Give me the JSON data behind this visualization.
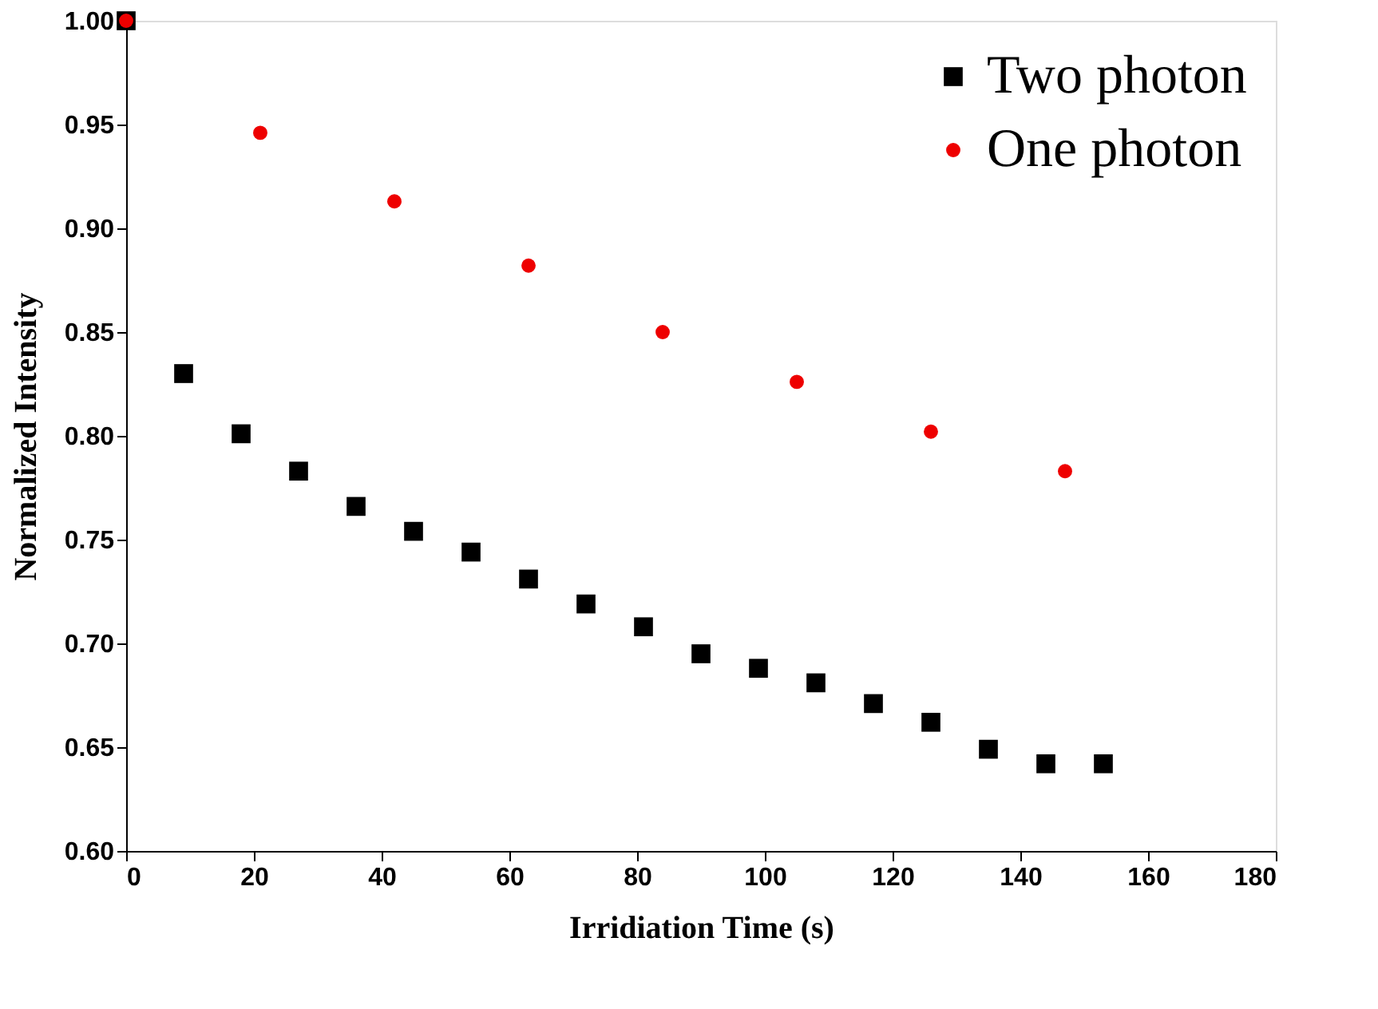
{
  "chart_data": {
    "type": "scatter",
    "xlabel": "Irridiation Time (s)",
    "ylabel": "Normalized Intensity",
    "xlim": [
      0,
      180
    ],
    "xticks": [
      0,
      20,
      40,
      60,
      80,
      100,
      120,
      140,
      160,
      180
    ],
    "ylim": [
      0.6,
      1.0
    ],
    "yticks": [
      {
        "value": 0.6,
        "label": "0.60"
      },
      {
        "value": 0.65,
        "label": "0.65"
      },
      {
        "value": 0.7,
        "label": "0.70"
      },
      {
        "value": 0.75,
        "label": "0.75"
      },
      {
        "value": 0.8,
        "label": "0.80"
      },
      {
        "value": 0.85,
        "label": "0.85"
      },
      {
        "value": 0.9,
        "label": "0.90"
      },
      {
        "value": 0.95,
        "label": "0.95"
      },
      {
        "value": 1.0,
        "label": "1.00"
      }
    ],
    "legend": "top right",
    "grid": false,
    "series": [
      {
        "name": "Two photon",
        "color": "#000000",
        "marker": "square",
        "x": [
          0,
          9,
          18,
          27,
          36,
          45,
          54,
          63,
          72,
          81,
          90,
          99,
          108,
          117,
          126,
          135,
          144,
          153
        ],
        "values": [
          1.0,
          0.83,
          0.801,
          0.783,
          0.766,
          0.754,
          0.744,
          0.731,
          0.719,
          0.708,
          0.695,
          0.688,
          0.681,
          0.671,
          0.662,
          0.649,
          0.642,
          0.642
        ]
      },
      {
        "name": "One photon",
        "color": "#ee0000",
        "marker": "circle",
        "x": [
          0,
          21,
          42,
          63,
          84,
          105,
          126,
          147
        ],
        "values": [
          1.0,
          0.946,
          0.913,
          0.882,
          0.85,
          0.826,
          0.802,
          0.783
        ]
      }
    ]
  }
}
